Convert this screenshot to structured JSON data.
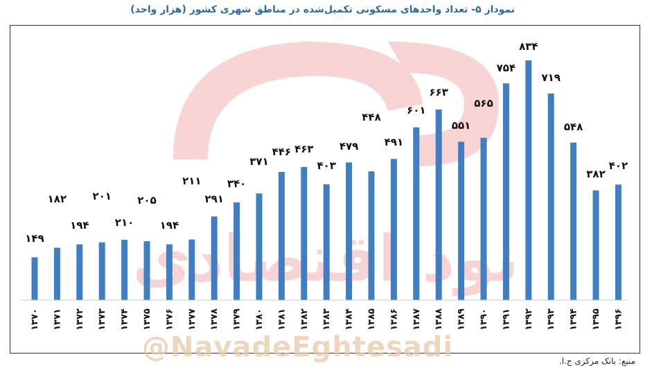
{
  "page": {
    "title": "نمودار ۵- تعداد واحدهای مسکونی تکمیل‌شده در مناطق شهری کشور (هزار واحد)",
    "source": "منبع: بانک مرکزی ج.ا.",
    "watermark_text": "@NavadeEghtesadi",
    "watermark_logo_text": "نود اقتصادی"
  },
  "colors": {
    "bar": "#3f7fc1",
    "title": "#2a6aa8",
    "watermark": "#e89a9a"
  },
  "chart_data": {
    "type": "bar",
    "title": "نمودار ۵- تعداد واحدهای مسکونی تکمیل‌شده در مناطق شهری کشور (هزار واحد)",
    "ylim": [
      0,
      880
    ],
    "grid": false,
    "categories": [
      "۱۳۷۰",
      "۱۳۷۱",
      "۱۳۷۲",
      "۱۳۷۳",
      "۱۳۷۴",
      "۱۳۷۵",
      "۱۳۷۶",
      "۱۳۷۷",
      "۱۳۷۸",
      "۱۳۷۹",
      "۱۳۸۰",
      "۱۳۸۱",
      "۱۳۸۲",
      "۱۳۸۳",
      "۱۳۸۴",
      "۱۳۸۵",
      "۱۳۸۶",
      "۱۳۸۷",
      "۱۳۸۸",
      "۱۳۸۹",
      "۱۳۹۰",
      "۱۳۹۱",
      "۱۳۹۲",
      "۱۳۹۳",
      "۱۳۹۴",
      "۱۳۹۵",
      "۱۳۹۶"
    ],
    "values": [
      149,
      182,
      194,
      201,
      210,
      205,
      194,
      211,
      291,
      340,
      371,
      446,
      463,
      403,
      479,
      448,
      491,
      601,
      663,
      551,
      565,
      754,
      834,
      719,
      548,
      382,
      402
    ],
    "data_labels": [
      "۱۴۹",
      "۱۸۲",
      "۱۹۴",
      "۲۰۱",
      "۲۱۰",
      "۲۰۵",
      "۱۹۴",
      "۲۱۱",
      "۲۹۱",
      "۳۴۰",
      "۳۷۱",
      "۴۴۶",
      "۴۶۳",
      "۴۰۳",
      "۴۷۹",
      "۴۴۸",
      "۴۹۱",
      "۶۰۱",
      "۶۶۳",
      "۵۵۱",
      "۵۶۵",
      "۷۵۴",
      "۸۳۴",
      "۷۱۹",
      "۵۴۸",
      "۳۸۲",
      "۴۰۲"
    ]
  }
}
